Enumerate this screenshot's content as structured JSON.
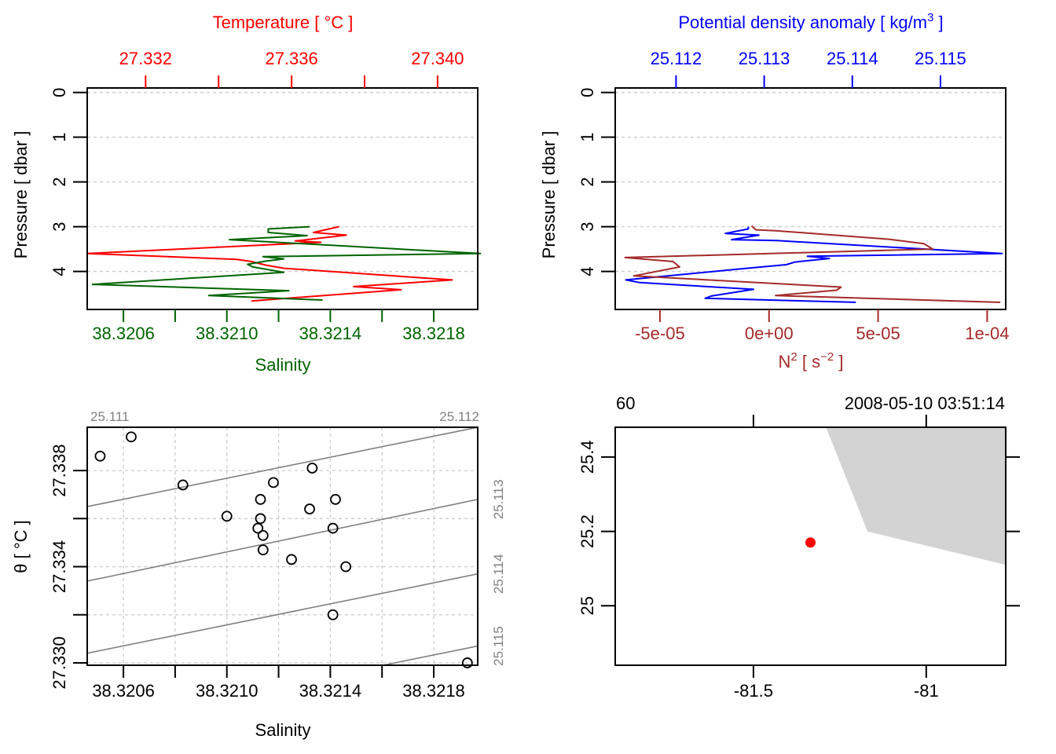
{
  "chart_data": [
    {
      "id": "ts_profile",
      "type": "line",
      "top_axis": {
        "label": "Temperature [ °C ]",
        "color": "#ff0000",
        "ticks": [
          27.332,
          27.334,
          27.336,
          27.338,
          27.34
        ],
        "tick_labels": [
          "27.332",
          "",
          "27.336",
          "",
          "27.340"
        ],
        "range": [
          27.3304,
          27.3411
        ]
      },
      "bottom_axis": {
        "label": "Salinity",
        "color": "#006400",
        "ticks": [
          38.3206,
          38.3208,
          38.321,
          38.3212,
          38.3214,
          38.3216,
          38.3218
        ],
        "tick_labels": [
          "38.3206",
          "",
          "38.3210",
          "",
          "38.3214",
          "",
          "38.3218"
        ],
        "range": [
          38.32046,
          38.32197
        ]
      },
      "left_axis": {
        "label": "Pressure [ dbar ]",
        "ticks": [
          0,
          1,
          2,
          3,
          4
        ],
        "tick_labels": [
          "0",
          "1",
          "2",
          "3",
          "4"
        ],
        "range": [
          4.85,
          -0.1
        ]
      },
      "grid": true,
      "series": [
        {
          "name": "Temperature",
          "color": "#ff0000",
          "axis": "top",
          "points": [
            [
              27.3373,
              3.0
            ],
            [
              27.3366,
              3.13
            ],
            [
              27.3375,
              3.19
            ],
            [
              27.3361,
              3.32
            ],
            [
              27.3368,
              3.35
            ],
            [
              27.3304,
              3.6
            ],
            [
              27.3345,
              3.73
            ],
            [
              27.3349,
              3.78
            ],
            [
              27.3353,
              3.86
            ],
            [
              27.3358,
              3.93
            ],
            [
              27.3404,
              4.19
            ],
            [
              27.3377,
              4.34
            ],
            [
              27.339,
              4.41
            ],
            [
              27.3349,
              4.66
            ]
          ]
        },
        {
          "name": "Salinity",
          "color": "#006400",
          "axis": "bottom",
          "points": [
            [
              38.32132,
              3.0
            ],
            [
              38.32116,
              3.05
            ],
            [
              38.32116,
              3.13
            ],
            [
              38.32131,
              3.2
            ],
            [
              38.32101,
              3.29
            ],
            [
              38.32198,
              3.6
            ],
            [
              38.32114,
              3.67
            ],
            [
              38.32122,
              3.72
            ],
            [
              38.32115,
              3.77
            ],
            [
              38.32108,
              3.84
            ],
            [
              38.3211,
              3.9
            ],
            [
              38.32122,
              4.02
            ],
            [
              38.32048,
              4.29
            ],
            [
              38.32124,
              4.43
            ],
            [
              38.32093,
              4.54
            ],
            [
              38.32137,
              4.64
            ]
          ]
        }
      ]
    },
    {
      "id": "density_n2_profile",
      "type": "line",
      "top_axis": {
        "label": "Potential density anomaly [ kg/m³ ]",
        "label_base": "Potential density anomaly [ kg/m",
        "label_sup": "3",
        "label_end": " ]",
        "color": "#0000ff",
        "ticks": [
          25.112,
          25.113,
          25.114,
          25.115
        ],
        "tick_labels": [
          "25.112",
          "25.113",
          "25.114",
          "25.115"
        ],
        "range": [
          25.11131,
          25.11574
        ]
      },
      "bottom_axis": {
        "label": "N² [ s⁻² ]",
        "color": "#a52a2a",
        "ticks": [
          -5e-05,
          0,
          5e-05,
          0.0001
        ],
        "tick_labels": [
          "-5e-05",
          "0e+00",
          "5e-05",
          "1e-04"
        ],
        "range": [
          -7.05e-05,
          0.0001085
        ]
      },
      "left_axis": {
        "label": "Pressure [ dbar ]",
        "ticks": [
          0,
          1,
          2,
          3,
          4
        ],
        "tick_labels": [
          "0",
          "1",
          "2",
          "3",
          "4"
        ],
        "range": [
          4.85,
          -0.1
        ]
      },
      "grid": true,
      "series": [
        {
          "name": "Potential density anomaly",
          "color": "#0000ff",
          "axis": "top",
          "points": [
            [
              25.11282,
              3.0
            ],
            [
              25.11282,
              3.05
            ],
            [
              25.11256,
              3.15
            ],
            [
              25.11294,
              3.19
            ],
            [
              25.11263,
              3.29
            ],
            [
              25.11314,
              3.31
            ],
            [
              25.1157,
              3.6
            ],
            [
              25.11349,
              3.66
            ],
            [
              25.11374,
              3.71
            ],
            [
              25.11335,
              3.79
            ],
            [
              25.11325,
              3.85
            ],
            [
              25.1128,
              3.93
            ],
            [
              25.11143,
              4.19
            ],
            [
              25.11159,
              4.25
            ],
            [
              25.11288,
              4.4
            ],
            [
              25.1124,
              4.55
            ],
            [
              25.11233,
              4.6
            ],
            [
              25.11404,
              4.69
            ]
          ]
        },
        {
          "name": "N2",
          "color": "#a52a2a",
          "axis": "bottom",
          "points": [
            [
              -8e-06,
              2.98
            ],
            [
              -6e-06,
              3.07
            ],
            [
              3e-06,
              3.09
            ],
            [
              5.5e-05,
              3.28
            ],
            [
              7.1e-05,
              3.38
            ],
            [
              7.5e-05,
              3.5
            ],
            [
              -6.6e-05,
              3.69
            ],
            [
              -4.4e-05,
              3.78
            ],
            [
              -4.1e-05,
              3.9
            ],
            [
              -6.2e-05,
              4.1
            ],
            [
              3.3e-05,
              4.35
            ],
            [
              3.1e-05,
              4.42
            ],
            [
              3e-06,
              4.54
            ],
            [
              0.000106,
              4.69
            ]
          ]
        }
      ]
    },
    {
      "id": "ts_diagram",
      "type": "scatter",
      "xlabel": "Salinity",
      "ylabel": "θ [ °C ]",
      "x_ticks": [
        38.3206,
        38.3208,
        38.321,
        38.3212,
        38.3214,
        38.3216,
        38.3218
      ],
      "x_tick_labels": [
        "38.3206",
        "",
        "38.3210",
        "",
        "38.3214",
        "",
        "38.3218"
      ],
      "y_ticks": [
        27.33,
        27.332,
        27.334,
        27.336,
        27.338
      ],
      "y_tick_labels": [
        "27.330",
        "",
        "27.334",
        "",
        "27.338"
      ],
      "xlim": [
        38.32046,
        38.32197
      ],
      "ylim": [
        27.3299,
        27.3398
      ],
      "grid": true,
      "isopycnals": {
        "color": "#808080",
        "labels_top": [
          "25.111",
          "25.112"
        ],
        "labels_right": [
          "25.113",
          "25.114",
          "25.115"
        ],
        "lines": [
          {
            "sigma": 25.111,
            "y_left": 27.3398,
            "y_right": 27.3431
          },
          {
            "sigma": 25.112,
            "y_left": 27.3365,
            "y_right": 27.3398
          },
          {
            "sigma": 25.113,
            "y_left": 27.3334,
            "y_right": 27.3368
          },
          {
            "sigma": 25.114,
            "y_left": 27.3304,
            "y_right": 27.3337
          },
          {
            "sigma": 25.115,
            "y_left": 27.3274,
            "y_right": 27.3307
          }
        ]
      },
      "points": [
        {
          "x": 38.32051,
          "y": 27.3386
        },
        {
          "x": 38.32063,
          "y": 27.3394
        },
        {
          "x": 38.32083,
          "y": 27.3374
        },
        {
          "x": 38.321,
          "y": 27.3361
        },
        {
          "x": 38.32113,
          "y": 27.3368
        },
        {
          "x": 38.32113,
          "y": 27.336
        },
        {
          "x": 38.32112,
          "y": 27.3356
        },
        {
          "x": 38.32114,
          "y": 27.3353
        },
        {
          "x": 38.32114,
          "y": 27.3347
        },
        {
          "x": 38.32118,
          "y": 27.3375
        },
        {
          "x": 38.32125,
          "y": 27.3343
        },
        {
          "x": 38.32132,
          "y": 27.3364
        },
        {
          "x": 38.32133,
          "y": 27.3381
        },
        {
          "x": 38.32141,
          "y": 27.3356
        },
        {
          "x": 38.32142,
          "y": 27.3368
        },
        {
          "x": 38.32146,
          "y": 27.334
        },
        {
          "x": 38.32141,
          "y": 27.332
        },
        {
          "x": 38.32193,
          "y": 27.33
        }
      ]
    },
    {
      "id": "station_map",
      "type": "scatter",
      "top_left_label": "60",
      "top_right_label": "2008-05-10 03:51:14",
      "x_ticks": [
        -81.5,
        -81
      ],
      "x_tick_labels": [
        "-81.5",
        "-81"
      ],
      "y_ticks": [
        25.0,
        25.2,
        25.4
      ],
      "y_tick_labels": [
        "25",
        "25.2",
        "25.4"
      ],
      "xlim": [
        -81.9,
        -80.77
      ],
      "ylim": [
        24.84,
        25.48
      ],
      "land_color": "#d3d3d3",
      "land_polygon": [
        [
          -81.29,
          25.48
        ],
        [
          -81.17,
          25.2
        ],
        [
          -80.77,
          25.11
        ],
        [
          -80.77,
          25.48
        ]
      ],
      "station": {
        "lon": -81.335,
        "lat": 25.17,
        "color": "#ff0000"
      }
    }
  ]
}
